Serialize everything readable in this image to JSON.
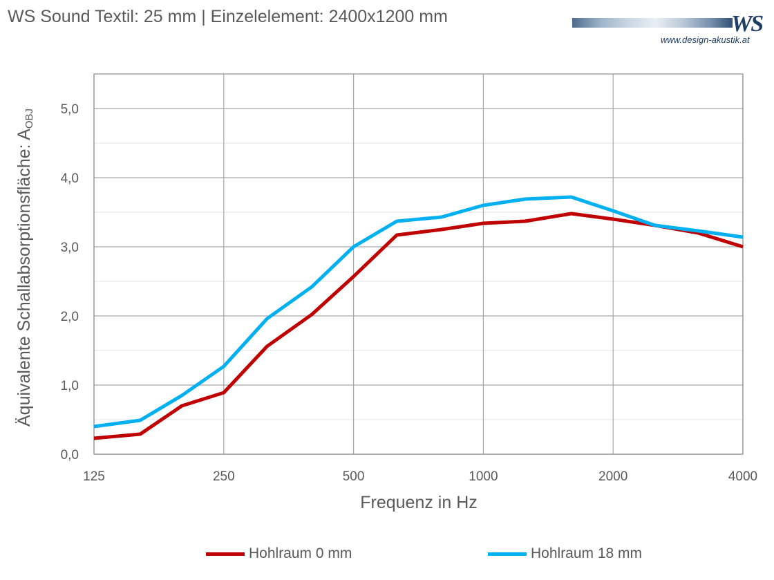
{
  "title": "WS Sound Textil: 25 mm | Einzelelement: 2400x1200 mm",
  "logo": {
    "mark": "WS",
    "url": "www.design-akustik.at"
  },
  "chart_data": {
    "type": "line",
    "title": "WS Sound Textil: 25 mm | Einzelelement: 2400x1200 mm",
    "xlabel": "Frequenz in Hz",
    "ylabel_main": "Äquivalente Schallabsorptionsfläche: A",
    "ylabel_sub": "OBJ",
    "x_scale": "log",
    "x": [
      125,
      160,
      200,
      250,
      315,
      400,
      500,
      630,
      800,
      1000,
      1250,
      1600,
      2000,
      2500,
      3150,
      4000
    ],
    "x_ticks": [
      125,
      250,
      500,
      1000,
      2000,
      4000
    ],
    "x_tick_labels": [
      "125",
      "250",
      "500",
      "1000",
      "2000",
      "4000"
    ],
    "ylim": [
      0,
      5.5
    ],
    "y_ticks": [
      0,
      1,
      2,
      3,
      4,
      5
    ],
    "y_tick_labels": [
      "0,0",
      "1,0",
      "2,0",
      "3,0",
      "4,0",
      "5,0"
    ],
    "grid": true,
    "legend_position": "bottom",
    "series": [
      {
        "name": "Hohlraum 0 mm",
        "color": "#c00000",
        "values": [
          0.23,
          0.29,
          0.7,
          0.89,
          1.56,
          2.02,
          2.57,
          3.17,
          3.25,
          3.34,
          3.37,
          3.48,
          3.4,
          3.31,
          3.2,
          3.0
        ]
      },
      {
        "name": "Hohlraum 18 mm",
        "color": "#00b0f0",
        "values": [
          0.4,
          0.49,
          0.85,
          1.27,
          1.96,
          2.42,
          3.0,
          3.37,
          3.43,
          3.6,
          3.69,
          3.72,
          3.52,
          3.31,
          3.23,
          3.14
        ]
      }
    ]
  }
}
